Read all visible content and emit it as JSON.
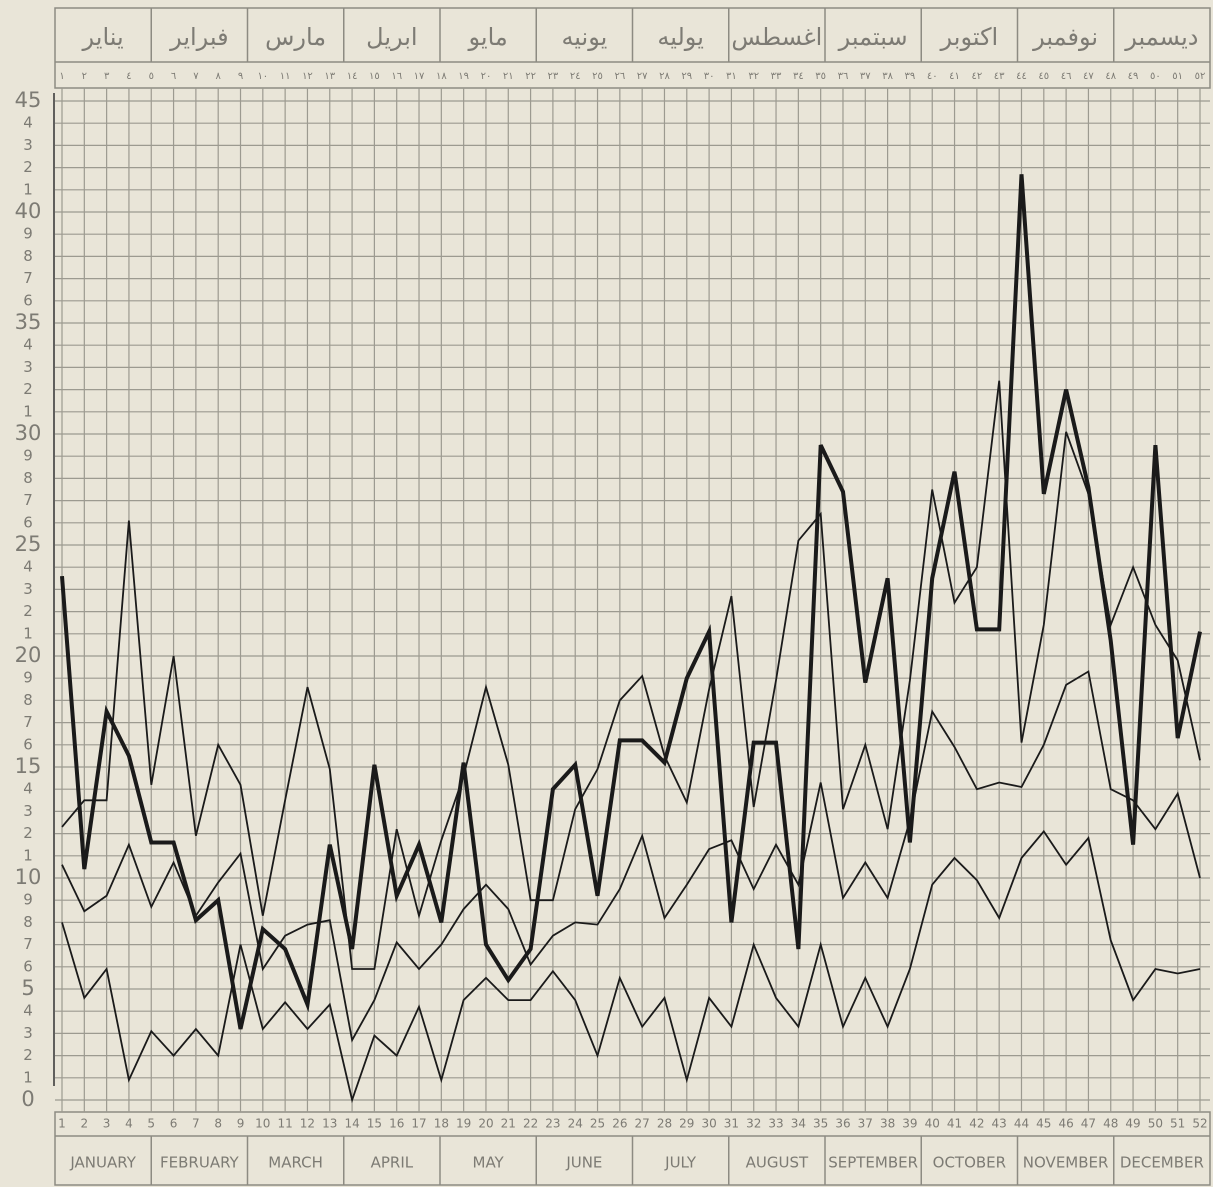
{
  "chart_data": {
    "type": "line",
    "arabic_months": [
      "يناير",
      "فبراير",
      "مارس",
      "ابريل",
      "مايو",
      "يونيه",
      "يوليه",
      "اغسطس",
      "سبتمبر",
      "اكتوبر",
      "نوفمبر",
      "ديسمبر"
    ],
    "arabic_weeks": [
      "١",
      "٢",
      "٣",
      "٤",
      "٥",
      "٦",
      "٧",
      "٨",
      "٩",
      "١٠",
      "١١",
      "١٢",
      "١٣",
      "١٤",
      "١٥",
      "١٦",
      "١٧",
      "١٨",
      "١٩",
      "٢٠",
      "٢١",
      "٢٢",
      "٢٣",
      "٢٤",
      "٢٥",
      "٢٦",
      "٢٧",
      "٢٨",
      "٢٩",
      "٣٠",
      "٣١",
      "٣٢",
      "٣٣",
      "٣٤",
      "٣٥",
      "٣٦",
      "٣٧",
      "٣٨",
      "٣٩",
      "٤٠",
      "٤١",
      "٤٢",
      "٤٣",
      "٤٤",
      "٤٥",
      "٤٦",
      "٤٧",
      "٤٨",
      "٤٩",
      "٥٠",
      "٥١",
      "٥٢"
    ],
    "months": [
      "JANUARY",
      "FEBRUARY",
      "MARCH",
      "APRIL",
      "MAY",
      "JUNE",
      "JULY",
      "AUGUST",
      "SEPTEMBER",
      "OCTOBER",
      "NOVEMBER",
      "DECEMBER"
    ],
    "categories": [
      "1",
      "2",
      "3",
      "4",
      "5",
      "6",
      "7",
      "8",
      "9",
      "10",
      "11",
      "12",
      "13",
      "14",
      "15",
      "16",
      "17",
      "18",
      "19",
      "20",
      "21",
      "22",
      "23",
      "24",
      "25",
      "26",
      "27",
      "28",
      "29",
      "30",
      "31",
      "32",
      "33",
      "34",
      "35",
      "36",
      "37",
      "38",
      "39",
      "40",
      "41",
      "42",
      "43",
      "44",
      "45",
      "46",
      "47",
      "48",
      "49",
      "50",
      "51",
      "52"
    ],
    "ylim": [
      0,
      45
    ],
    "yticks": [
      0,
      1,
      2,
      3,
      4,
      5,
      6,
      7,
      8,
      9,
      10,
      {
        "value": 11,
        "label": "1"
      },
      {
        "value": 12,
        "label": "2"
      },
      {
        "value": 13,
        "label": "3"
      },
      {
        "value": 14,
        "label": "4"
      },
      15,
      {
        "value": 16,
        "label": "6"
      },
      {
        "value": 17,
        "label": "7"
      },
      {
        "value": 18,
        "label": "8"
      },
      {
        "value": 19,
        "label": "9"
      },
      20,
      {
        "value": 21,
        "label": "1"
      },
      {
        "value": 22,
        "label": "2"
      },
      {
        "value": 23,
        "label": "3"
      },
      {
        "value": 24,
        "label": "4"
      },
      25,
      {
        "value": 26,
        "label": "6"
      },
      {
        "value": 27,
        "label": "7"
      },
      {
        "value": 28,
        "label": "8"
      },
      {
        "value": 29,
        "label": "9"
      },
      30,
      {
        "value": 31,
        "label": "1"
      },
      {
        "value": 32,
        "label": "2"
      },
      {
        "value": 33,
        "label": "3"
      },
      {
        "value": 34,
        "label": "4"
      },
      35,
      {
        "value": 36,
        "label": "6"
      },
      {
        "value": 37,
        "label": "7"
      },
      {
        "value": 38,
        "label": "8"
      },
      {
        "value": 39,
        "label": "9"
      },
      40,
      {
        "value": 41,
        "label": "1"
      },
      {
        "value": 42,
        "label": "2"
      },
      {
        "value": 43,
        "label": "3"
      },
      {
        "value": 44,
        "label": "4"
      },
      45
    ],
    "grid": true,
    "series": [
      {
        "color": "#1a1a1a",
        "width": 4,
        "values": [
          23.6,
          10.4,
          17.5,
          15.5,
          11.6,
          11.6,
          8.1,
          9,
          3.2,
          7.7,
          6.8,
          4.3,
          11.5,
          6.8,
          15.1,
          9.2,
          11.5,
          8,
          15.2,
          7,
          5.4,
          6.8,
          14,
          15.1,
          9.2,
          16.2,
          16.2,
          15.2,
          19,
          21.1,
          8,
          16.1,
          16.1,
          6.8,
          29.5,
          27.4,
          18.8,
          23.5,
          11.6,
          23.5,
          28.3,
          21.2,
          21.2,
          41.7,
          27.3,
          32,
          27.6,
          20.7,
          11.5,
          29.5,
          16.3,
          21.1
        ]
      },
      {
        "color": "#1a1a1a",
        "width": 1.8,
        "values": [
          12.3,
          13.5,
          13.5,
          26.1,
          14.2,
          20,
          11.9,
          16,
          14.2,
          8.3,
          13.5,
          18.6,
          14.9,
          5.9,
          5.9,
          12.2,
          8.3,
          11.7,
          14.6,
          18.6,
          15.1,
          9,
          9,
          13.1,
          14.9,
          18,
          19.1,
          15.5,
          13.4,
          18.5,
          22.7,
          13.2,
          18.9,
          25.2,
          26.4,
          13.1,
          16,
          12.2,
          18.9,
          27.5,
          22.4,
          24,
          32.4,
          16.1,
          21.4,
          30.1,
          27.3,
          21.4,
          24,
          21.4,
          19.8,
          15.3
        ]
      },
      {
        "color": "#1a1a1a",
        "width": 1.8,
        "values": [
          10.6,
          8.5,
          9.2,
          11.5,
          8.7,
          10.7,
          8.3,
          9.8,
          11.1,
          5.9,
          7.4,
          7.9,
          8.1,
          2.7,
          4.5,
          7.1,
          5.9,
          7,
          8.6,
          9.7,
          8.6,
          6.1,
          7.4,
          8,
          7.9,
          9.5,
          11.9,
          8.2,
          9.7,
          11.3,
          11.7,
          9.5,
          11.5,
          9.7,
          14.3,
          9.1,
          10.7,
          9.1,
          12.6,
          17.5,
          15.9,
          14,
          14.3,
          14.1,
          16,
          18.7,
          19.3,
          14,
          13.5,
          12.2,
          13.8,
          10
        ]
      },
      {
        "color": "#1a1a1a",
        "width": 1.8,
        "values": [
          8,
          4.6,
          5.9,
          0.9,
          3.1,
          2,
          3.2,
          2,
          7,
          3.2,
          4.4,
          3.2,
          4.3,
          0,
          2.9,
          2,
          4.2,
          0.9,
          4.5,
          5.5,
          4.5,
          4.5,
          5.8,
          4.5,
          2,
          5.5,
          3.3,
          4.6,
          0.9,
          4.6,
          3.3,
          7,
          4.6,
          3.3,
          7,
          3.3,
          5.5,
          3.3,
          5.9,
          9.7,
          10.9,
          9.9,
          8.2,
          10.9,
          12.1,
          10.6,
          11.8,
          7.2,
          4.5,
          5.9,
          5.7,
          5.9
        ]
      }
    ]
  }
}
